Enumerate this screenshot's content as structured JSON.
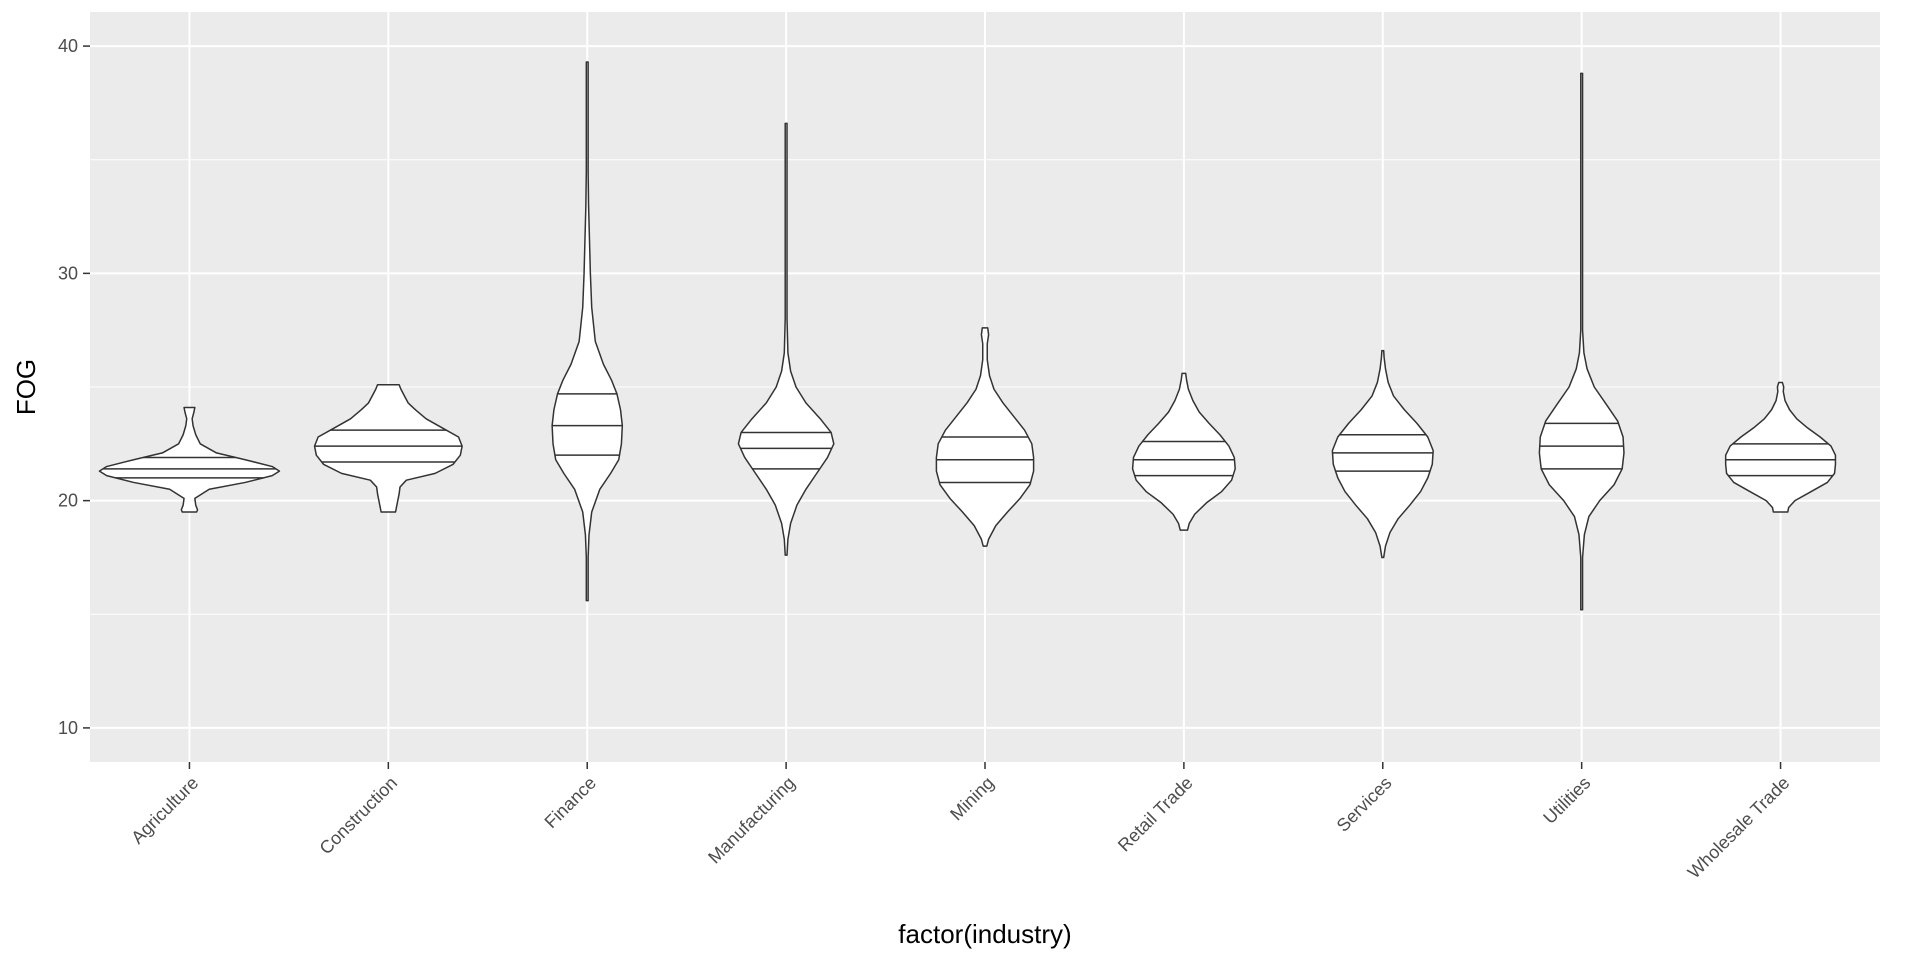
{
  "chart_data": {
    "type": "violin",
    "title": "",
    "xlabel": "factor(industry)",
    "ylabel": "FOG",
    "ylim": [
      8.5,
      41.5
    ],
    "yticks": [
      10,
      20,
      30,
      40
    ],
    "grid": true,
    "draw_quantiles": [
      0.25,
      0.5,
      0.75
    ],
    "colors": {
      "panel_background": "#ebebeb",
      "grid": "#ffffff",
      "violin_fill": "#ffffff",
      "violin_stroke": "#333333",
      "tick_text": "#4d4d4d"
    },
    "categories": [
      "Agriculture",
      "Construction",
      "Finance",
      "Manufacturing",
      "Mining",
      "Retail Trade",
      "Services",
      "Utilities",
      "Wholesale Trade"
    ],
    "series": [
      {
        "category": "Agriculture",
        "min": 19.5,
        "max": 24.1,
        "quantiles": [
          21.0,
          21.4,
          21.9
        ],
        "profile": [
          [
            19.5,
            0.08
          ],
          [
            19.6,
            0.09
          ],
          [
            19.8,
            0.07
          ],
          [
            20.1,
            0.06
          ],
          [
            20.5,
            0.22
          ],
          [
            20.8,
            0.62
          ],
          [
            21.1,
            0.92
          ],
          [
            21.3,
            1.0
          ],
          [
            21.5,
            0.92
          ],
          [
            21.8,
            0.62
          ],
          [
            22.1,
            0.3
          ],
          [
            22.5,
            0.12
          ],
          [
            22.9,
            0.07
          ],
          [
            23.3,
            0.04
          ],
          [
            23.6,
            0.03
          ],
          [
            23.9,
            0.05
          ],
          [
            24.1,
            0.06
          ]
        ]
      },
      {
        "category": "Construction",
        "min": 19.5,
        "max": 25.1,
        "quantiles": [
          21.7,
          22.4,
          23.1
        ],
        "profile": [
          [
            19.5,
            0.08
          ],
          [
            19.7,
            0.09
          ],
          [
            19.9,
            0.1
          ],
          [
            20.3,
            0.12
          ],
          [
            20.6,
            0.13
          ],
          [
            20.9,
            0.2
          ],
          [
            21.2,
            0.52
          ],
          [
            21.6,
            0.72
          ],
          [
            22.0,
            0.8
          ],
          [
            22.4,
            0.82
          ],
          [
            22.8,
            0.78
          ],
          [
            23.2,
            0.6
          ],
          [
            23.6,
            0.42
          ],
          [
            24.0,
            0.3
          ],
          [
            24.3,
            0.22
          ],
          [
            24.6,
            0.18
          ],
          [
            24.9,
            0.14
          ],
          [
            25.1,
            0.12
          ]
        ]
      },
      {
        "category": "Finance",
        "min": 15.6,
        "max": 39.3,
        "quantiles": [
          22.0,
          23.3,
          24.7
        ],
        "profile": [
          [
            15.6,
            0.002
          ],
          [
            16.5,
            0.005
          ],
          [
            17.5,
            0.01
          ],
          [
            18.5,
            0.02
          ],
          [
            19.5,
            0.05
          ],
          [
            20.5,
            0.14
          ],
          [
            21.2,
            0.26
          ],
          [
            21.8,
            0.35
          ],
          [
            22.5,
            0.38
          ],
          [
            23.3,
            0.39
          ],
          [
            24.0,
            0.37
          ],
          [
            24.7,
            0.33
          ],
          [
            25.3,
            0.27
          ],
          [
            26.0,
            0.18
          ],
          [
            27.0,
            0.09
          ],
          [
            28.5,
            0.05
          ],
          [
            30.0,
            0.035
          ],
          [
            31.5,
            0.025
          ],
          [
            33.0,
            0.015
          ],
          [
            34.5,
            0.005
          ],
          [
            36.5,
            0.003
          ],
          [
            39.3,
            0.002
          ]
        ]
      },
      {
        "category": "Manufacturing",
        "min": 17.6,
        "max": 36.6,
        "quantiles": [
          21.4,
          22.3,
          23.0
        ],
        "profile": [
          [
            17.6,
            0.01
          ],
          [
            18.3,
            0.02
          ],
          [
            19.0,
            0.05
          ],
          [
            19.8,
            0.12
          ],
          [
            20.5,
            0.22
          ],
          [
            21.2,
            0.34
          ],
          [
            21.9,
            0.46
          ],
          [
            22.5,
            0.53
          ],
          [
            23.0,
            0.5
          ],
          [
            23.6,
            0.38
          ],
          [
            24.3,
            0.22
          ],
          [
            25.0,
            0.11
          ],
          [
            25.7,
            0.05
          ],
          [
            26.5,
            0.02
          ],
          [
            28.0,
            0.01
          ],
          [
            30.0,
            0.006
          ],
          [
            33.0,
            0.004
          ],
          [
            36.6,
            0.003
          ]
        ]
      },
      {
        "category": "Mining",
        "min": 18.0,
        "max": 27.6,
        "quantiles": [
          20.8,
          21.8,
          22.8
        ],
        "profile": [
          [
            18.0,
            0.02
          ],
          [
            18.3,
            0.04
          ],
          [
            18.9,
            0.12
          ],
          [
            19.5,
            0.25
          ],
          [
            20.1,
            0.39
          ],
          [
            20.7,
            0.5
          ],
          [
            21.3,
            0.54
          ],
          [
            21.9,
            0.54
          ],
          [
            22.5,
            0.52
          ],
          [
            23.1,
            0.44
          ],
          [
            23.7,
            0.32
          ],
          [
            24.3,
            0.2
          ],
          [
            24.9,
            0.1
          ],
          [
            25.5,
            0.05
          ],
          [
            26.2,
            0.025
          ],
          [
            26.9,
            0.025
          ],
          [
            27.3,
            0.04
          ],
          [
            27.6,
            0.03
          ]
        ]
      },
      {
        "category": "Retail Trade",
        "min": 18.7,
        "max": 25.6,
        "quantiles": [
          21.1,
          21.8,
          22.6
        ],
        "profile": [
          [
            18.7,
            0.04
          ],
          [
            19.0,
            0.06
          ],
          [
            19.4,
            0.12
          ],
          [
            19.9,
            0.25
          ],
          [
            20.4,
            0.42
          ],
          [
            20.9,
            0.53
          ],
          [
            21.4,
            0.57
          ],
          [
            21.9,
            0.56
          ],
          [
            22.4,
            0.5
          ],
          [
            22.9,
            0.4
          ],
          [
            23.4,
            0.28
          ],
          [
            23.9,
            0.17
          ],
          [
            24.4,
            0.1
          ],
          [
            24.9,
            0.05
          ],
          [
            25.3,
            0.03
          ],
          [
            25.6,
            0.02
          ]
        ]
      },
      {
        "category": "Services",
        "min": 17.5,
        "max": 26.6,
        "quantiles": [
          21.3,
          22.1,
          22.9
        ],
        "profile": [
          [
            17.5,
            0.01
          ],
          [
            18.0,
            0.03
          ],
          [
            18.6,
            0.08
          ],
          [
            19.2,
            0.17
          ],
          [
            19.8,
            0.3
          ],
          [
            20.4,
            0.42
          ],
          [
            21.0,
            0.5
          ],
          [
            21.6,
            0.55
          ],
          [
            22.2,
            0.56
          ],
          [
            22.8,
            0.5
          ],
          [
            23.4,
            0.38
          ],
          [
            24.0,
            0.24
          ],
          [
            24.6,
            0.12
          ],
          [
            25.2,
            0.06
          ],
          [
            25.8,
            0.03
          ],
          [
            26.3,
            0.015
          ],
          [
            26.6,
            0.01
          ]
        ]
      },
      {
        "category": "Utilities",
        "min": 15.2,
        "max": 38.8,
        "quantiles": [
          21.4,
          22.4,
          23.4
        ],
        "profile": [
          [
            15.2,
            0.01
          ],
          [
            15.8,
            0.01
          ],
          [
            16.5,
            0.004
          ],
          [
            17.5,
            0.005
          ],
          [
            18.5,
            0.03
          ],
          [
            19.3,
            0.08
          ],
          [
            20.0,
            0.2
          ],
          [
            20.7,
            0.36
          ],
          [
            21.4,
            0.45
          ],
          [
            22.1,
            0.47
          ],
          [
            22.8,
            0.46
          ],
          [
            23.5,
            0.4
          ],
          [
            24.2,
            0.28
          ],
          [
            25.0,
            0.14
          ],
          [
            25.8,
            0.06
          ],
          [
            26.5,
            0.025
          ],
          [
            27.5,
            0.008
          ],
          [
            30.0,
            0.003
          ],
          [
            34.0,
            0.003
          ],
          [
            38.8,
            0.002
          ]
        ]
      },
      {
        "category": "Wholesale Trade",
        "min": 19.5,
        "max": 25.2,
        "quantiles": [
          21.1,
          21.8,
          22.5
        ],
        "profile": [
          [
            19.5,
            0.08
          ],
          [
            19.7,
            0.09
          ],
          [
            20.0,
            0.16
          ],
          [
            20.4,
            0.34
          ],
          [
            20.8,
            0.52
          ],
          [
            21.2,
            0.6
          ],
          [
            21.6,
            0.61
          ],
          [
            22.0,
            0.61
          ],
          [
            22.4,
            0.56
          ],
          [
            22.8,
            0.44
          ],
          [
            23.2,
            0.3
          ],
          [
            23.6,
            0.18
          ],
          [
            24.0,
            0.1
          ],
          [
            24.4,
            0.05
          ],
          [
            24.8,
            0.03
          ],
          [
            25.0,
            0.035
          ],
          [
            25.2,
            0.02
          ]
        ]
      }
    ]
  }
}
